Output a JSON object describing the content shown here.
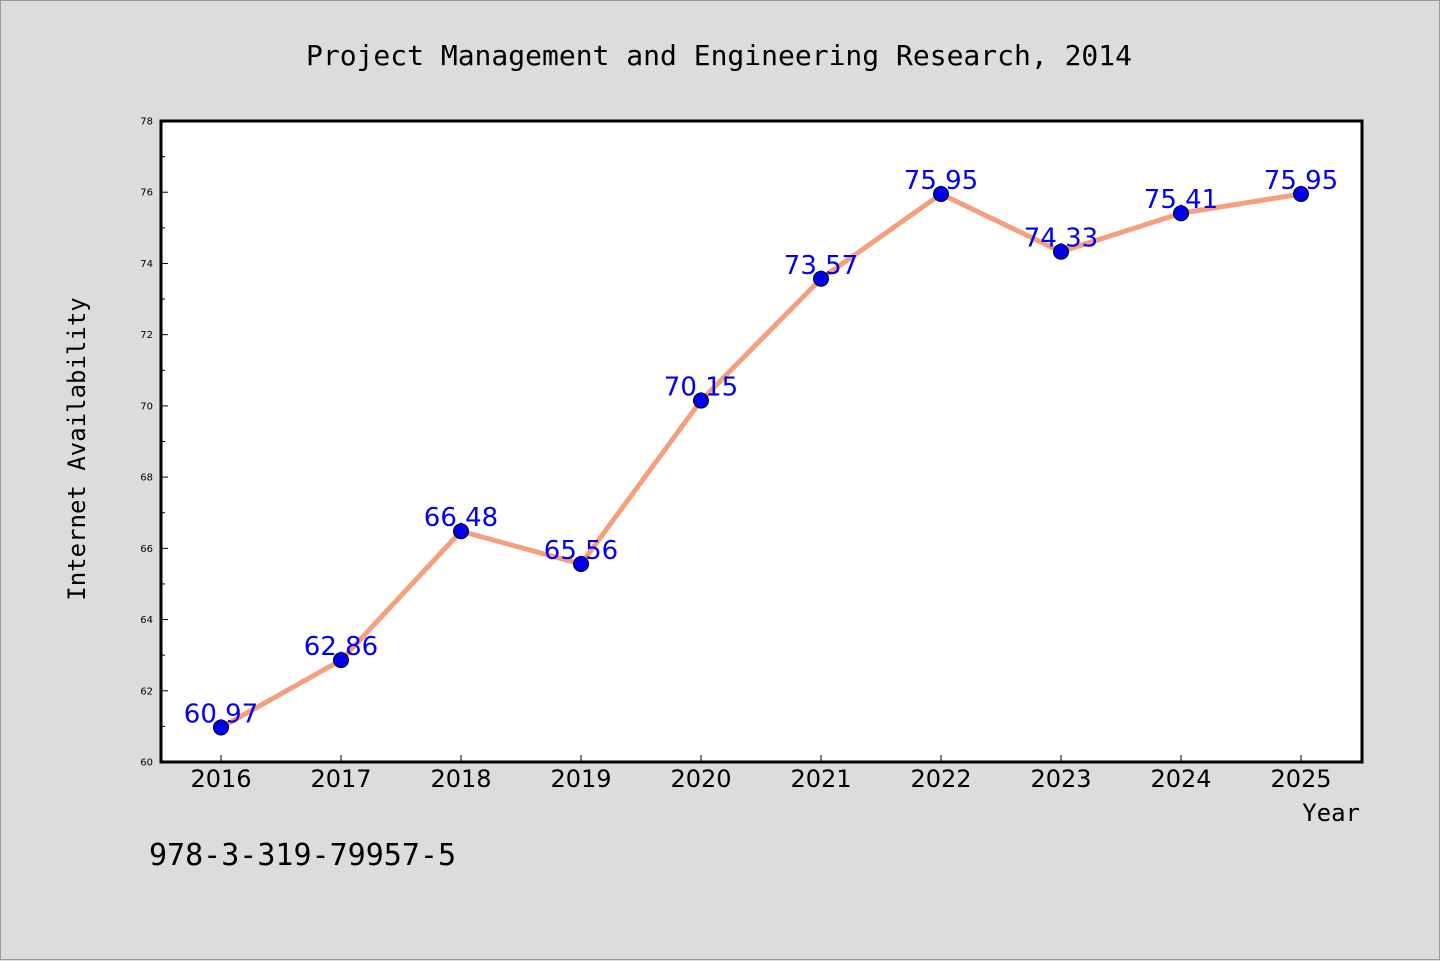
{
  "chart_data": {
    "type": "line",
    "title": "Project Management and Engineering Research, 2014",
    "xlabel": "Year",
    "ylabel": "Internet Availability",
    "categories": [
      "2016",
      "2017",
      "2018",
      "2019",
      "2020",
      "2021",
      "2022",
      "2023",
      "2024",
      "2025"
    ],
    "series": [
      {
        "values": [
          60.97,
          62.86,
          66.48,
          65.56,
          70.15,
          73.57,
          75.95,
          74.33,
          75.41,
          75.95
        ],
        "line_color": "#f4a07e",
        "marker_color": "#0000ee"
      }
    ],
    "data_labels": [
      "60.97",
      "62.86",
      "66.48",
      "65.56",
      "70.15",
      "73.57",
      "75.95",
      "74.33",
      "75.41",
      "75.95"
    ],
    "ylim": [
      60,
      78
    ],
    "yticks": [
      "60",
      "62",
      "64",
      "66",
      "68",
      "70",
      "72",
      "74",
      "76",
      "78"
    ],
    "grid": false,
    "legend": "none",
    "label_color": "#0000ee",
    "background": "#dcdcdc",
    "plot_background": "#ffffff"
  },
  "footer_code": "978-3-319-79957-5"
}
